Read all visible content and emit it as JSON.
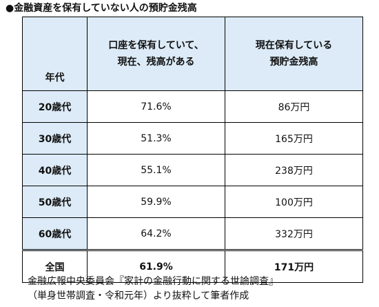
{
  "title": "●金融資産を保有していない人の預貯金残高",
  "table": {
    "corner_label": "年代",
    "col1_header": [
      "口座を保有していて、",
      "現在、残高がある"
    ],
    "col2_header": [
      "現在保有している",
      "預貯金残高"
    ],
    "rows": [
      {
        "label": "20歳代",
        "rate": "71.6%",
        "balance": "86万円"
      },
      {
        "label": "30歳代",
        "rate": "51.3%",
        "balance": "165万円"
      },
      {
        "label": "40歳代",
        "rate": "55.1%",
        "balance": "238万円"
      },
      {
        "label": "50歳代",
        "rate": "59.9%",
        "balance": "100万円"
      },
      {
        "label": "60歳代",
        "rate": "64.2%",
        "balance": "332万円"
      }
    ],
    "total": {
      "label": "全国",
      "rate": "61.9%",
      "balance": "171万円"
    }
  },
  "source": {
    "line1": "金融広報中央委員会『家計の金融行動に関する世論調査』",
    "line2": "（単身世帯調査・令和元年）より抜粋して筆者作成"
  }
}
